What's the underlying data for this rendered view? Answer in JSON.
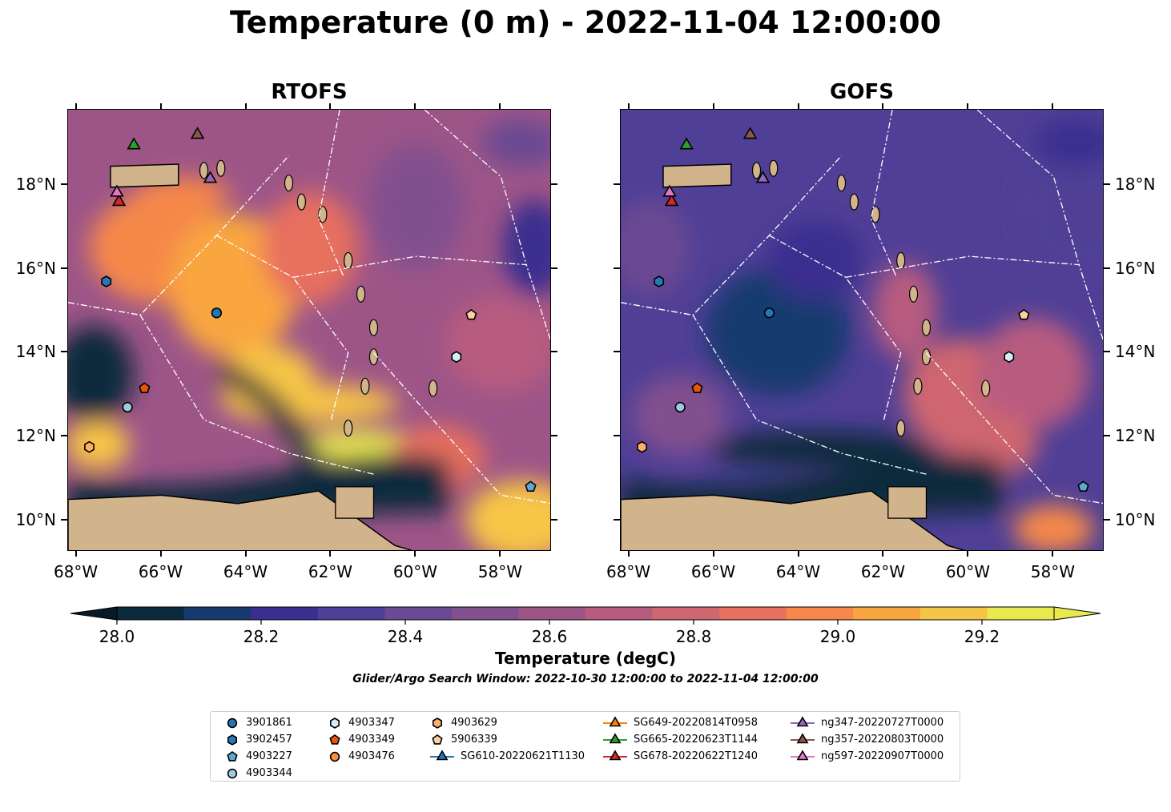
{
  "title": "Temperature (0 m) - 2022-11-04 12:00:00",
  "panels": [
    {
      "title": "RTOFS",
      "style": "warm"
    },
    {
      "title": "GOFS",
      "style": "cool"
    }
  ],
  "axes": {
    "x_ticks": [
      {
        "value": -68,
        "label": "68°W"
      },
      {
        "value": -66,
        "label": "66°W"
      },
      {
        "value": -64,
        "label": "64°W"
      },
      {
        "value": -62,
        "label": "62°W"
      },
      {
        "value": -60,
        "label": "60°W"
      },
      {
        "value": -58,
        "label": "58°W"
      }
    ],
    "y_ticks": [
      {
        "value": 18,
        "label": "18°N"
      },
      {
        "value": 16,
        "label": "16°N"
      },
      {
        "value": 14,
        "label": "14°N"
      },
      {
        "value": 12,
        "label": "12°N"
      },
      {
        "value": 10,
        "label": "10°N"
      }
    ],
    "xlim": [
      -68.2,
      -56.8
    ],
    "ylim": [
      9.25,
      19.8
    ]
  },
  "chart_data": {
    "type": "heatmap",
    "title": "Temperature (0 m) - 2022-11-04 12:00:00",
    "colorbar": {
      "label": "Temperature (degC)",
      "levels": [
        28.0,
        28.1,
        28.2,
        28.3,
        28.4,
        28.5,
        28.6,
        28.7,
        28.8,
        28.9,
        29.0,
        29.1,
        29.2,
        29.3
      ],
      "colors": [
        "#0b2a3c",
        "#173a6e",
        "#3a2f8f",
        "#503f96",
        "#6a4a92",
        "#82508e",
        "#9d5588",
        "#b85c7f",
        "#cf6670",
        "#e7705e",
        "#f5884a",
        "#f9a641",
        "#f7c546",
        "#e9e84f"
      ],
      "under_color": "#081a26",
      "over_color": "#e9e84f",
      "tick_labels": [
        "28.0",
        "28.2",
        "28.4",
        "28.6",
        "28.8",
        "29.0",
        "29.2"
      ],
      "tick_values": [
        28.0,
        28.2,
        28.4,
        28.6,
        28.8,
        29.0,
        29.2
      ]
    }
  },
  "subtitle": "Glider/Argo Search Window: 2022-10-30 12:00:00 to 2022-11-04 12:00:00",
  "markers": [
    {
      "label": "3901861",
      "shape": "circle",
      "color": "#1f77b4",
      "lon": -64.7,
      "lat": 14.95
    },
    {
      "label": "3902457",
      "shape": "hexagon",
      "color": "#2878b8",
      "lon": -67.3,
      "lat": 15.7
    },
    {
      "label": "4903227",
      "shape": "pentagon",
      "color": "#5fa8d6",
      "lon": -57.3,
      "lat": 10.8
    },
    {
      "label": "4903344",
      "shape": "circle",
      "color": "#9ecae1",
      "lon": -66.8,
      "lat": 12.7
    },
    {
      "label": "4903347",
      "shape": "hexagon",
      "color": "#d6ecfa",
      "lon": -59.05,
      "lat": 13.9
    },
    {
      "label": "4903349",
      "shape": "pentagon",
      "color": "#e6550d",
      "lon": -66.4,
      "lat": 13.15
    },
    {
      "label": "4903476",
      "shape": "circle",
      "color": "#fd8d3c",
      "lon": null,
      "lat": null
    },
    {
      "label": "4903629",
      "shape": "hexagon",
      "color": "#fdae6b",
      "lon": -67.7,
      "lat": 11.75
    },
    {
      "label": "5906339",
      "shape": "pentagon",
      "color": "#fdd0a2",
      "lon": -58.7,
      "lat": 14.9
    },
    {
      "label": "SG610-20220621T1130",
      "shape": "triangle",
      "color": "#1f77b4",
      "line": true,
      "lon": null,
      "lat": null
    },
    {
      "label": "SG649-20220814T0958",
      "shape": "triangle",
      "color": "#ff7f0e",
      "line": true,
      "lon": null,
      "lat": null
    },
    {
      "label": "SG665-20220623T1144",
      "shape": "triangle",
      "color": "#2ca02c",
      "line": true,
      "lon": -66.65,
      "lat": 18.95
    },
    {
      "label": "SG678-20220622T1240",
      "shape": "triangle",
      "color": "#d62728",
      "line": true,
      "lon": -67.0,
      "lat": 17.6
    },
    {
      "label": "ng347-20220727T0000",
      "shape": "triangle",
      "color": "#9467bd",
      "line": true,
      "lon": -64.85,
      "lat": 18.15
    },
    {
      "label": "ng357-20220803T0000",
      "shape": "triangle",
      "color": "#8c564b",
      "line": true,
      "lon": -65.15,
      "lat": 19.2
    },
    {
      "label": "ng597-20220907T0000",
      "shape": "triangle",
      "color": "#e377c2",
      "line": true,
      "lon": -67.05,
      "lat": 17.82
    }
  ]
}
